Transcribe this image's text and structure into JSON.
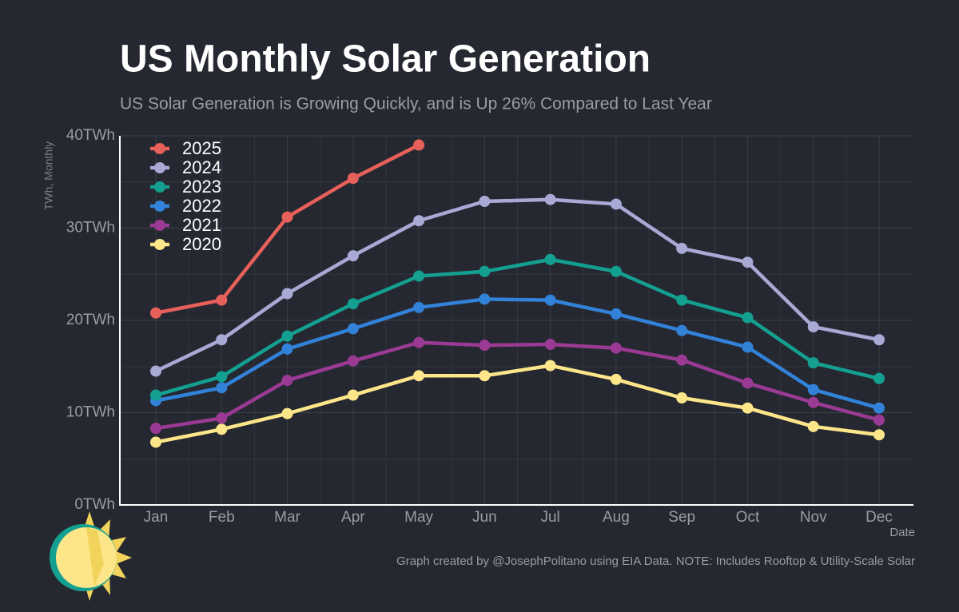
{
  "chart_data": {
    "type": "line",
    "title": "US Monthly Solar Generation",
    "subtitle": "US Solar Generation is Growing Quickly, and is Up 26% Compared to Last Year",
    "y_axis_label": "TWh, Monthly",
    "x_axis_label": "Date",
    "caption": "Graph created by @JosephPolitano using EIA Data. NOTE: Includes Rooftop & Utility-Scale Solar",
    "categories": [
      "Jan",
      "Feb",
      "Mar",
      "Apr",
      "May",
      "Jun",
      "Jul",
      "Aug",
      "Sep",
      "Oct",
      "Nov",
      "Dec"
    ],
    "ylim": [
      0,
      40
    ],
    "yticks": [
      {
        "value": 0,
        "label": "0TWh"
      },
      {
        "value": 10,
        "label": "10TWh"
      },
      {
        "value": 20,
        "label": "20TWh"
      },
      {
        "value": 30,
        "label": "30TWh"
      },
      {
        "value": 40,
        "label": "40TWh"
      }
    ],
    "y_minor_ticks": [
      5,
      15,
      25,
      35
    ],
    "grid": true,
    "legend": "top-left",
    "series": [
      {
        "name": "2025",
        "color": "#e8605a",
        "values": [
          20.8,
          22.2,
          31.2,
          35.4,
          39.0,
          null,
          null,
          null,
          null,
          null,
          null,
          null
        ]
      },
      {
        "name": "2024",
        "color": "#a9a9d6",
        "values": [
          14.5,
          17.9,
          22.9,
          27.0,
          30.8,
          32.9,
          33.1,
          32.6,
          27.8,
          26.3,
          19.3,
          17.9
        ]
      },
      {
        "name": "2023",
        "color": "#14a090",
        "values": [
          11.9,
          13.9,
          18.3,
          21.8,
          24.8,
          25.3,
          26.6,
          25.3,
          22.2,
          20.3,
          15.4,
          13.7
        ]
      },
      {
        "name": "2022",
        "color": "#3282d9",
        "values": [
          11.3,
          12.7,
          16.9,
          19.1,
          21.4,
          22.3,
          22.2,
          20.7,
          18.9,
          17.1,
          12.5,
          10.5
        ]
      },
      {
        "name": "2021",
        "color": "#9b3a94",
        "values": [
          8.3,
          9.4,
          13.5,
          15.6,
          17.6,
          17.3,
          17.4,
          17.0,
          15.7,
          13.2,
          11.1,
          9.2
        ]
      },
      {
        "name": "2020",
        "color": "#fde68a",
        "values": [
          6.8,
          8.2,
          9.9,
          11.9,
          14.0,
          14.0,
          15.1,
          13.6,
          11.6,
          10.5,
          8.5,
          7.6
        ]
      }
    ]
  }
}
